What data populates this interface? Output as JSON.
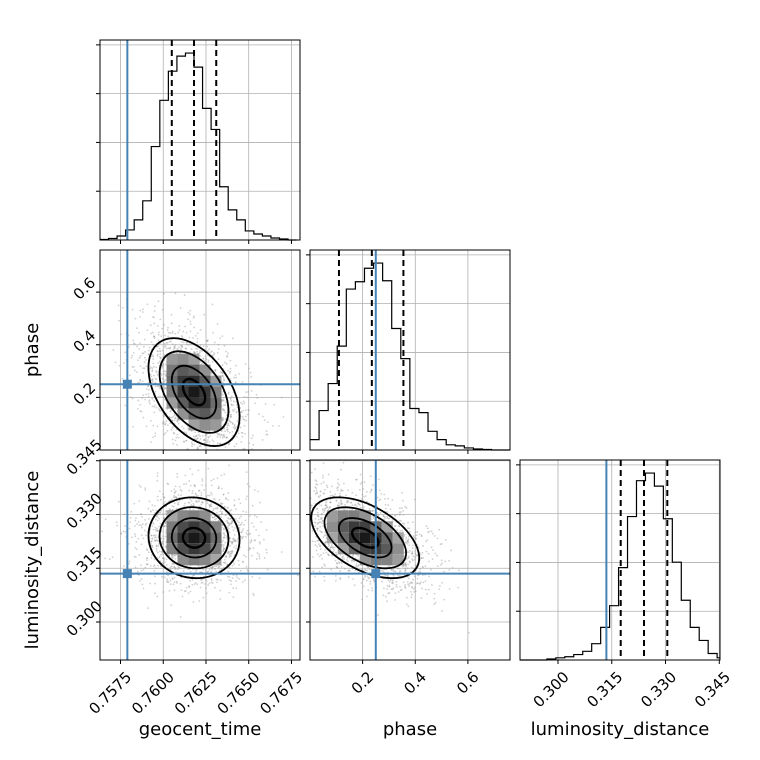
{
  "colors": {
    "truth": "#4682b4",
    "hist": "#000000",
    "grid": "#b0b0b0",
    "points": "#9a9a9a"
  },
  "chart_data": {
    "type": "corner",
    "parameters": [
      "geocent_time",
      "phase",
      "luminosity_distance"
    ],
    "truths": {
      "geocent_time": 0.7579,
      "phase": 0.25,
      "luminosity_distance": 0.3135
    },
    "quantiles": {
      "geocent_time": [
        0.7605,
        0.7618,
        0.7631
      ],
      "phase": [
        0.11,
        0.235,
        0.355
      ],
      "luminosity_distance": [
        0.3175,
        0.324,
        0.3305
      ]
    },
    "axes": {
      "geocent_time": {
        "label": "geocent_time",
        "range": [
          0.7563,
          0.768
        ],
        "ticks": [
          0.7575,
          0.76,
          0.7625,
          0.765,
          0.7675
        ],
        "tick_labels": [
          "0.7575",
          "0.7600",
          "0.7625",
          "0.7650",
          "0.7675"
        ]
      },
      "phase": {
        "label": "phase",
        "range": [
          0.0,
          0.76
        ],
        "ticks": [
          0.2,
          0.4,
          0.6
        ],
        "tick_labels": [
          "0.2",
          "0.4",
          "0.6"
        ]
      },
      "luminosity_distance": {
        "label": "luminosity_distance",
        "range": [
          0.2894,
          0.3452
        ],
        "ticks": [
          0.3,
          0.315,
          0.33,
          0.345
        ],
        "tick_labels": [
          "0.300",
          "0.315",
          "0.330",
          "0.345"
        ]
      }
    },
    "histograms": {
      "geocent_time": {
        "edges": [
          0.7563,
          0.7568,
          0.7573,
          0.7578,
          0.7583,
          0.7588,
          0.7593,
          0.7598,
          0.7603,
          0.7608,
          0.7613,
          0.7618,
          0.7623,
          0.7628,
          0.7633,
          0.7638,
          0.7643,
          0.7648,
          0.7653,
          0.7658,
          0.7663,
          0.7668,
          0.7673,
          0.7678
        ],
        "counts": [
          0.5,
          1.5,
          4,
          10,
          20,
          39,
          93,
          139,
          168,
          183,
          186,
          172,
          131,
          110,
          53,
          30,
          20,
          9,
          6,
          4,
          2,
          1,
          0
        ]
      },
      "phase": {
        "edges": [
          0.0,
          0.0345,
          0.069,
          0.1035,
          0.138,
          0.1725,
          0.207,
          0.2415,
          0.276,
          0.3105,
          0.345,
          0.3795,
          0.414,
          0.4485,
          0.483,
          0.5175,
          0.552,
          0.5865,
          0.621,
          0.6555,
          0.69,
          0.7245,
          0.76
        ],
        "counts": [
          10,
          38,
          64,
          100,
          155,
          162,
          175,
          180,
          163,
          117,
          88,
          40,
          36,
          18,
          10,
          5,
          4,
          2,
          1,
          0.5,
          0,
          0
        ]
      },
      "luminosity_distance": {
        "edges": [
          0.2894,
          0.2919,
          0.2944,
          0.2969,
          0.2994,
          0.3019,
          0.3044,
          0.3069,
          0.3094,
          0.3119,
          0.3144,
          0.3169,
          0.3194,
          0.3219,
          0.3244,
          0.3269,
          0.3294,
          0.3319,
          0.3344,
          0.3369,
          0.3394,
          0.3419,
          0.3444,
          0.3452
        ],
        "counts": [
          0,
          0,
          0,
          1,
          2,
          3,
          5,
          8,
          15,
          30,
          50,
          85,
          132,
          165,
          172,
          160,
          130,
          90,
          55,
          30,
          18,
          6,
          2
        ]
      }
    },
    "joint": [
      {
        "x": "geocent_time",
        "y": "phase",
        "center": [
          0.7618,
          0.22
        ],
        "sd": [
          0.0013,
          0.1
        ],
        "rho": -0.45,
        "n": 1700
      },
      {
        "x": "geocent_time",
        "y": "luminosity_distance",
        "center": [
          0.7618,
          0.3235
        ],
        "sd": [
          0.0013,
          0.0055
        ],
        "rho": -0.05,
        "n": 1700
      },
      {
        "x": "phase",
        "y": "luminosity_distance",
        "center": [
          0.21,
          0.3235
        ],
        "sd": [
          0.1,
          0.0055
        ],
        "rho": -0.5,
        "n": 1700
      }
    ]
  }
}
